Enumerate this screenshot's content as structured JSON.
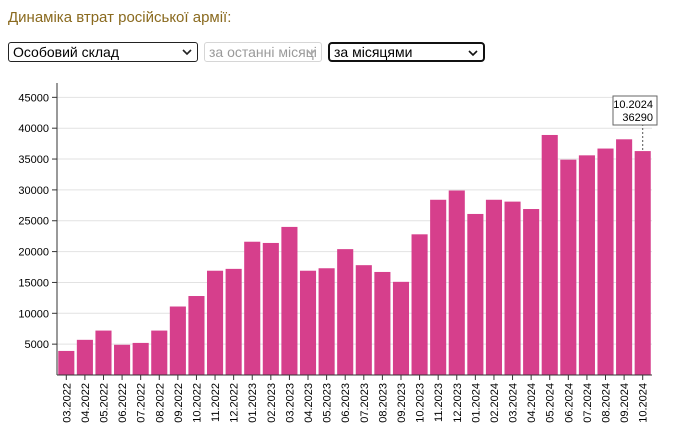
{
  "header": {
    "title": "Динаміка втрат російської армії:"
  },
  "controls": {
    "category_select": "Особовий склад",
    "period_select": "за останні місяці",
    "grouping_select": "за місяцями"
  },
  "colors": {
    "bar": "#d63f8c",
    "axis": "#333333",
    "grid": "#e2e2e2",
    "title": "#8a6a1f"
  },
  "chart_data": {
    "type": "bar",
    "title": "",
    "xlabel": "",
    "ylabel": "",
    "ylim": [
      0,
      47000
    ],
    "yticks": [
      5000,
      10000,
      15000,
      20000,
      25000,
      30000,
      35000,
      40000,
      45000
    ],
    "grid": "horizontal",
    "categories": [
      "03.2022",
      "04.2022",
      "05.2022",
      "06.2022",
      "07.2022",
      "08.2022",
      "09.2022",
      "10.2022",
      "11.2022",
      "12.2022",
      "01.2023",
      "02.2023",
      "03.2023",
      "04.2023",
      "05.2023",
      "06.2023",
      "07.2023",
      "08.2023",
      "09.2023",
      "10.2023",
      "11.2023",
      "12.2023",
      "01.2024",
      "02.2024",
      "03.2024",
      "04.2024",
      "05.2024",
      "06.2024",
      "07.2024",
      "08.2024",
      "09.2024",
      "10.2024"
    ],
    "values": [
      3900,
      5700,
      7200,
      4900,
      5200,
      7200,
      11100,
      12800,
      16900,
      17200,
      21600,
      21400,
      24000,
      16900,
      17300,
      20400,
      17800,
      16700,
      15100,
      22800,
      28400,
      29900,
      26100,
      28400,
      28100,
      26900,
      38900,
      34900,
      35600,
      36700,
      38200,
      36290
    ],
    "tooltip": {
      "label": "10.2024",
      "value": "36290"
    }
  }
}
